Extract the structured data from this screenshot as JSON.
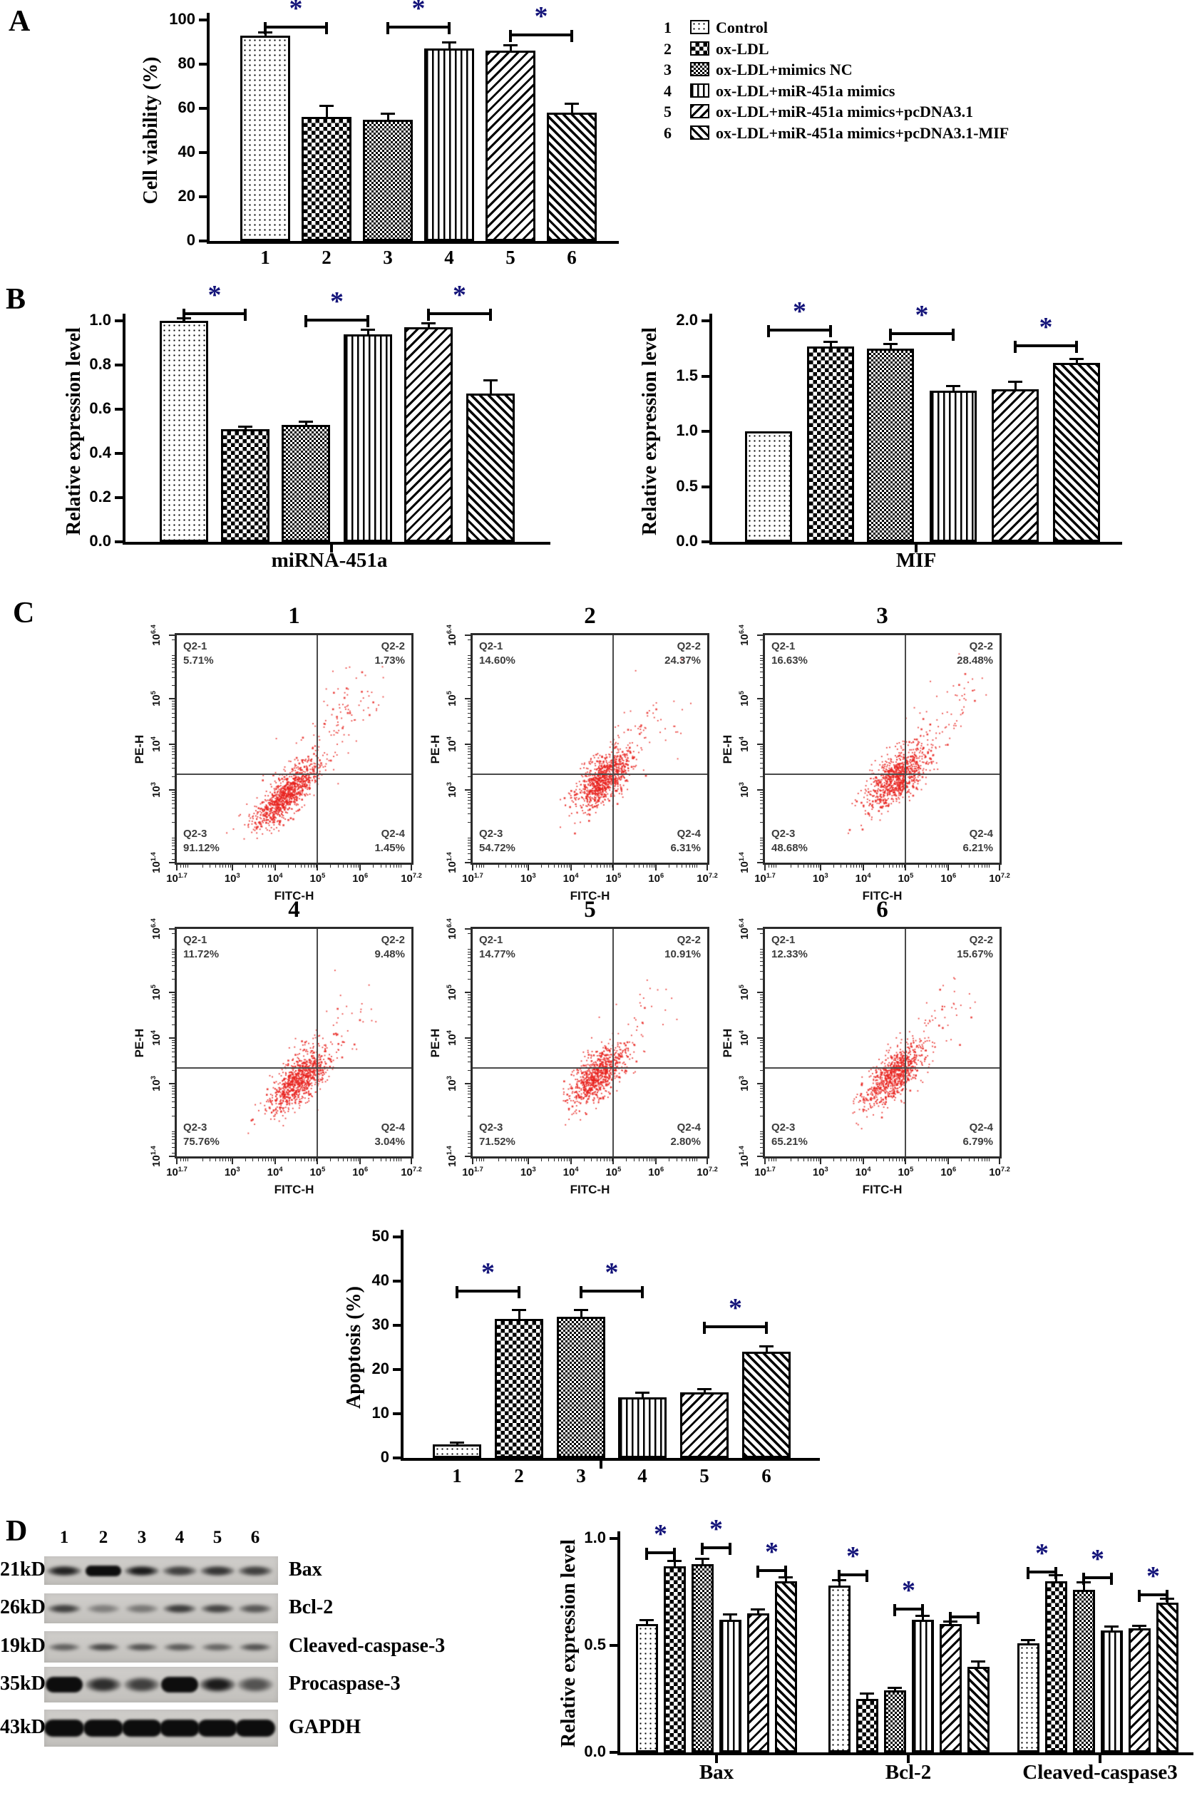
{
  "panels": {
    "a": "A",
    "b": "B",
    "c": "C",
    "d": "D"
  },
  "patterns": [
    "p-dots",
    "p-checker-fine",
    "p-checker-coarse",
    "p-vstripes",
    "p-diag-f",
    "p-diag-b"
  ],
  "colors": {
    "significance_star": "#14147a",
    "scatter_dot": "#e8231f",
    "bar_border": "#000000"
  },
  "panel_a": {
    "legend": [
      {
        "num": "1",
        "label": "Control"
      },
      {
        "num": "2",
        "label": "ox-LDL"
      },
      {
        "num": "3",
        "label": "ox-LDL+mimics NC"
      },
      {
        "num": "4",
        "label": "ox-LDL+miR-451a mimics"
      },
      {
        "num": "5",
        "label": "ox-LDL+miR-451a mimics+pcDNA3.1"
      },
      {
        "num": "6",
        "label": "ox-LDL+miR-451a mimics+pcDNA3.1-MIF"
      }
    ]
  },
  "chart_data": [
    {
      "id": "viability",
      "type": "bar",
      "ylabel": "Cell viability (%)",
      "xlabel": "",
      "ylim": [
        0,
        100
      ],
      "ytick_values": [
        0,
        20,
        40,
        60,
        80,
        100
      ],
      "ytick_labels": [
        "0",
        "20",
        "40",
        "60",
        "80",
        "100"
      ],
      "categories": [
        "1",
        "2",
        "3",
        "4",
        "5",
        "6"
      ],
      "values": [
        93,
        56,
        55,
        87,
        86,
        58
      ],
      "errors": [
        1.5,
        5,
        2.5,
        3,
        2.5,
        4
      ],
      "significance": [
        {
          "pair": [
            1,
            2
          ],
          "y": 97.5,
          "label": "*"
        },
        {
          "pair": [
            3,
            4
          ],
          "y": 97.5,
          "label": "*"
        },
        {
          "pair": [
            5,
            6
          ],
          "y": 94,
          "label": "*"
        }
      ]
    },
    {
      "id": "mirna451a",
      "type": "bar",
      "ylabel": "Relative expression level",
      "xlabel": "miRNA-451a",
      "ylim": [
        0,
        1.0
      ],
      "ytick_values": [
        0,
        0.2,
        0.4,
        0.6,
        0.8,
        1.0
      ],
      "ytick_labels": [
        "0.0",
        "0.2",
        "0.4",
        "0.6",
        "0.8",
        "1.0"
      ],
      "values": [
        1.0,
        0.51,
        0.53,
        0.94,
        0.97,
        0.67
      ],
      "errors": [
        0.012,
        0.012,
        0.012,
        0.02,
        0.02,
        0.06
      ],
      "significance": [
        {
          "pair": [
            1,
            2
          ],
          "y": 1.04,
          "label": "*"
        },
        {
          "pair": [
            3,
            4
          ],
          "y": 1.01,
          "label": "*"
        },
        {
          "pair": [
            5,
            6
          ],
          "y": 1.04,
          "label": "*"
        }
      ]
    },
    {
      "id": "mif",
      "type": "bar",
      "ylabel": "Relative expression level",
      "xlabel": "MIF",
      "ylim": [
        0,
        2.0
      ],
      "ytick_values": [
        0,
        0.5,
        1.0,
        1.5,
        2.0
      ],
      "ytick_labels": [
        "0.0",
        "0.5",
        "1.0",
        "1.5",
        "2.0"
      ],
      "values": [
        1.0,
        1.77,
        1.75,
        1.37,
        1.38,
        1.62
      ],
      "errors": [
        0,
        0.04,
        0.04,
        0.04,
        0.07,
        0.035
      ],
      "significance": [
        {
          "pair": [
            1,
            2
          ],
          "y": 1.93,
          "label": "*"
        },
        {
          "pair": [
            3,
            4
          ],
          "y": 1.9,
          "label": "*"
        },
        {
          "pair": [
            5,
            6
          ],
          "y": 1.79,
          "label": "*"
        }
      ]
    },
    {
      "id": "apoptosis",
      "type": "bar",
      "ylabel": "Apoptosis (%)",
      "xlabel": "",
      "ylim": [
        0,
        50
      ],
      "ytick_values": [
        0,
        10,
        20,
        30,
        40,
        50
      ],
      "ytick_labels": [
        "0",
        "10",
        "20",
        "30",
        "40",
        "50"
      ],
      "categories": [
        "1",
        "2",
        "3",
        "4",
        "5",
        "6"
      ],
      "values": [
        3,
        31.5,
        32,
        13.7,
        14.8,
        24
      ],
      "errors": [
        0.5,
        2,
        1.5,
        1,
        0.8,
        1.2
      ],
      "significance": [
        {
          "pair": [
            1,
            2
          ],
          "y": 38,
          "label": "*"
        },
        {
          "pair": [
            3,
            4
          ],
          "y": 38,
          "label": "*"
        },
        {
          "pair": [
            5,
            6
          ],
          "y": 30,
          "label": "*"
        }
      ]
    },
    {
      "id": "protein",
      "type": "grouped-bar",
      "ylabel": "Relative expression level",
      "ylim": [
        0,
        1.0
      ],
      "ytick_values": [
        0,
        0.5,
        1.0
      ],
      "ytick_labels": [
        "0.0",
        "0.5",
        "1.0"
      ],
      "groups": [
        {
          "label": "Bax",
          "values": [
            0.6,
            0.87,
            0.88,
            0.62,
            0.65,
            0.8
          ],
          "errors": [
            0.02,
            0.025,
            0.025,
            0.025,
            0.02,
            0.02
          ]
        },
        {
          "label": "Bcl-2",
          "values": [
            0.78,
            0.25,
            0.29,
            0.62,
            0.6,
            0.4
          ],
          "errors": [
            0.025,
            0.025,
            0.012,
            0.02,
            0.012,
            0.025
          ]
        },
        {
          "label": "Cleaved-caspase3",
          "values": [
            0.51,
            0.8,
            0.76,
            0.57,
            0.58,
            0.7
          ],
          "errors": [
            0.015,
            0.03,
            0.035,
            0.02,
            0.012,
            0.02
          ]
        }
      ],
      "significance": [
        {
          "group": 1,
          "pair": [
            1,
            2
          ],
          "y": 0.94,
          "label": "*"
        },
        {
          "group": 1,
          "pair": [
            3,
            4
          ],
          "y": 0.963,
          "label": "*"
        },
        {
          "group": 1,
          "pair": [
            5,
            6
          ],
          "y": 0.857,
          "label": "*"
        },
        {
          "group": 2,
          "pair": [
            1,
            2
          ],
          "y": 0.837,
          "label": "*"
        },
        {
          "group": 2,
          "pair": [
            3,
            4
          ],
          "y": 0.677,
          "label": "*"
        },
        {
          "group": 2,
          "pair": [
            5,
            6
          ],
          "y": 0.64,
          "label": ""
        },
        {
          "group": 3,
          "pair": [
            1,
            2
          ],
          "y": 0.85,
          "label": "*"
        },
        {
          "group": 3,
          "pair": [
            3,
            4
          ],
          "y": 0.823,
          "label": "*"
        },
        {
          "group": 3,
          "pair": [
            5,
            6
          ],
          "y": 0.743,
          "label": "*"
        }
      ]
    },
    {
      "id": "flow1",
      "type": "scatter",
      "title": "1",
      "xlabel": "FITC-H",
      "ylabel": "PE-H",
      "xlim_exp": [
        1.7,
        7.2
      ],
      "ylim_exp": [
        1.4,
        6.4
      ],
      "xtick_exps": [
        1.7,
        3,
        4,
        5,
        6,
        7.2
      ],
      "xtick_labels": [
        "1.7",
        "3",
        "4",
        "5",
        "6",
        "7.2"
      ],
      "ytick_exps": [
        1.4,
        3,
        4,
        5,
        6.4
      ],
      "ytick_labels": [
        "1.4",
        "3",
        "4",
        "5",
        "6.4"
      ],
      "quad_x_exp": 5,
      "quad_y_exp": 3.35,
      "quadrants": [
        {
          "name": "Q2-1",
          "pct": "5.71%"
        },
        {
          "name": "Q2-2",
          "pct": "1.73%"
        },
        {
          "name": "Q2-3",
          "pct": "91.12%"
        },
        {
          "name": "Q2-4",
          "pct": "1.45%"
        }
      ],
      "cluster": {
        "cx": 4.25,
        "cy": 2.9,
        "major": 0.5,
        "minor": 0.17,
        "n": 950,
        "tail": {
          "tx": 6.1,
          "ty": 5.3,
          "n": 120,
          "jitter": 0.3
        }
      }
    },
    {
      "id": "flow2",
      "type": "scatter",
      "title": "2",
      "xlabel": "FITC-H",
      "ylabel": "PE-H",
      "xlim_exp": [
        1.7,
        7.2
      ],
      "ylim_exp": [
        1.4,
        6.4
      ],
      "xtick_exps": [
        1.7,
        3,
        4,
        5,
        6,
        7.2
      ],
      "xtick_labels": [
        "1.7",
        "3",
        "4",
        "5",
        "6",
        "7.2"
      ],
      "ytick_exps": [
        1.4,
        3,
        4,
        5,
        6.4
      ],
      "ytick_labels": [
        "1.4",
        "3",
        "4",
        "5",
        "6.4"
      ],
      "quad_x_exp": 5,
      "quad_y_exp": 3.35,
      "quadrants": [
        {
          "name": "Q2-1",
          "pct": "14.60%"
        },
        {
          "name": "Q2-2",
          "pct": "24.37%"
        },
        {
          "name": "Q2-3",
          "pct": "54.72%"
        },
        {
          "name": "Q2-4",
          "pct": "6.31%"
        }
      ],
      "cluster": {
        "cx": 4.78,
        "cy": 3.28,
        "major": 0.42,
        "minor": 0.2,
        "n": 900,
        "tail": {
          "tx": 6.4,
          "ty": 5.1,
          "n": 65,
          "jitter": 0.33
        }
      }
    },
    {
      "id": "flow3",
      "type": "scatter",
      "title": "3",
      "xlabel": "FITC-H",
      "ylabel": "PE-H",
      "xlim_exp": [
        1.7,
        7.2
      ],
      "ylim_exp": [
        1.4,
        6.4
      ],
      "xtick_exps": [
        1.7,
        3,
        4,
        5,
        6,
        7.2
      ],
      "xtick_labels": [
        "1.7",
        "3",
        "4",
        "5",
        "6",
        "7.2"
      ],
      "ytick_exps": [
        1.4,
        3,
        4,
        5,
        6.4
      ],
      "ytick_labels": [
        "1.4",
        "3",
        "4",
        "5",
        "6.4"
      ],
      "quad_x_exp": 5,
      "quad_y_exp": 3.35,
      "quadrants": [
        {
          "name": "Q2-1",
          "pct": "16.63%"
        },
        {
          "name": "Q2-2",
          "pct": "28.48%"
        },
        {
          "name": "Q2-3",
          "pct": "48.68%"
        },
        {
          "name": "Q2-4",
          "pct": "6.21%"
        }
      ],
      "cluster": {
        "cx": 4.8,
        "cy": 3.3,
        "major": 0.46,
        "minor": 0.22,
        "n": 880,
        "tail": {
          "tx": 6.5,
          "ty": 5.3,
          "n": 75,
          "jitter": 0.33
        }
      }
    },
    {
      "id": "flow4",
      "type": "scatter",
      "title": "4",
      "xlabel": "FITC-H",
      "ylabel": "PE-H",
      "xlim_exp": [
        1.7,
        7.2
      ],
      "ylim_exp": [
        1.4,
        6.4
      ],
      "xtick_exps": [
        1.7,
        3,
        4,
        5,
        6,
        7.2
      ],
      "xtick_labels": [
        "1.7",
        "3",
        "4",
        "5",
        "6",
        "7.2"
      ],
      "ytick_exps": [
        1.4,
        3,
        4,
        5,
        6.4
      ],
      "ytick_labels": [
        "1.4",
        "3",
        "4",
        "5",
        "6.4"
      ],
      "quad_x_exp": 5,
      "quad_y_exp": 3.35,
      "quadrants": [
        {
          "name": "Q2-1",
          "pct": "11.72%"
        },
        {
          "name": "Q2-2",
          "pct": "9.48%"
        },
        {
          "name": "Q2-3",
          "pct": "75.76%"
        },
        {
          "name": "Q2-4",
          "pct": "3.04%"
        }
      ],
      "cluster": {
        "cx": 4.55,
        "cy": 3.08,
        "major": 0.46,
        "minor": 0.2,
        "n": 880,
        "tail": {
          "tx": 6.1,
          "ty": 4.9,
          "n": 50,
          "jitter": 0.3
        }
      }
    },
    {
      "id": "flow5",
      "type": "scatter",
      "title": "5",
      "xlabel": "FITC-H",
      "ylabel": "PE-H",
      "xlim_exp": [
        1.7,
        7.2
      ],
      "ylim_exp": [
        1.4,
        6.4
      ],
      "xtick_exps": [
        1.7,
        3,
        4,
        5,
        6,
        7.2
      ],
      "xtick_labels": [
        "1.7",
        "3",
        "4",
        "5",
        "6",
        "7.2"
      ],
      "ytick_exps": [
        1.4,
        3,
        4,
        5,
        6.4
      ],
      "ytick_labels": [
        "1.4",
        "3",
        "4",
        "5",
        "6.4"
      ],
      "quad_x_exp": 5,
      "quad_y_exp": 3.35,
      "quadrants": [
        {
          "name": "Q2-1",
          "pct": "14.77%"
        },
        {
          "name": "Q2-2",
          "pct": "10.91%"
        },
        {
          "name": "Q2-3",
          "pct": "71.52%"
        },
        {
          "name": "Q2-4",
          "pct": "2.80%"
        }
      ],
      "cluster": {
        "cx": 4.62,
        "cy": 3.18,
        "major": 0.42,
        "minor": 0.2,
        "n": 820,
        "tail": {
          "tx": 6.0,
          "ty": 4.8,
          "n": 45,
          "jitter": 0.3
        }
      }
    },
    {
      "id": "flow6",
      "type": "scatter",
      "title": "6",
      "xlabel": "FITC-H",
      "ylabel": "PE-H",
      "xlim_exp": [
        1.7,
        7.2
      ],
      "ylim_exp": [
        1.4,
        6.4
      ],
      "xtick_exps": [
        1.7,
        3,
        4,
        5,
        6,
        7.2
      ],
      "xtick_labels": [
        "1.7",
        "3",
        "4",
        "5",
        "6",
        "7.2"
      ],
      "ytick_exps": [
        1.4,
        3,
        4,
        5,
        6.4
      ],
      "ytick_labels": [
        "1.4",
        "3",
        "4",
        "5",
        "6.4"
      ],
      "quad_x_exp": 5,
      "quad_y_exp": 3.35,
      "quadrants": [
        {
          "name": "Q2-1",
          "pct": "12.33%"
        },
        {
          "name": "Q2-2",
          "pct": "15.67%"
        },
        {
          "name": "Q2-3",
          "pct": "65.21%"
        },
        {
          "name": "Q2-4",
          "pct": "6.79%"
        }
      ],
      "cluster": {
        "cx": 4.72,
        "cy": 3.2,
        "major": 0.45,
        "minor": 0.2,
        "n": 840,
        "tail": {
          "tx": 6.3,
          "ty": 5.0,
          "n": 60,
          "jitter": 0.32
        }
      }
    }
  ],
  "panel_d": {
    "blot": {
      "lane_numbers": [
        "1",
        "2",
        "3",
        "4",
        "5",
        "6"
      ],
      "rows": [
        {
          "kd": "21kD",
          "protein": "Bax",
          "intensities": [
            0.88,
            0.97,
            0.92,
            0.72,
            0.78,
            0.72
          ]
        },
        {
          "kd": "26kD",
          "protein": "Bcl-2",
          "intensities": [
            0.72,
            0.38,
            0.42,
            0.75,
            0.7,
            0.6
          ]
        },
        {
          "kd": "19kD",
          "protein": "Cleaved-caspase-3",
          "intensities": [
            0.55,
            0.68,
            0.62,
            0.58,
            0.52,
            0.62
          ]
        },
        {
          "kd": "35kD",
          "protein": "Procaspase-3",
          "intensities": [
            0.97,
            0.82,
            0.72,
            0.97,
            0.92,
            0.62
          ]
        },
        {
          "kd": "43kD",
          "protein": "GAPDH",
          "intensities": [
            1,
            1,
            1,
            1,
            1,
            0.97
          ]
        }
      ]
    }
  }
}
